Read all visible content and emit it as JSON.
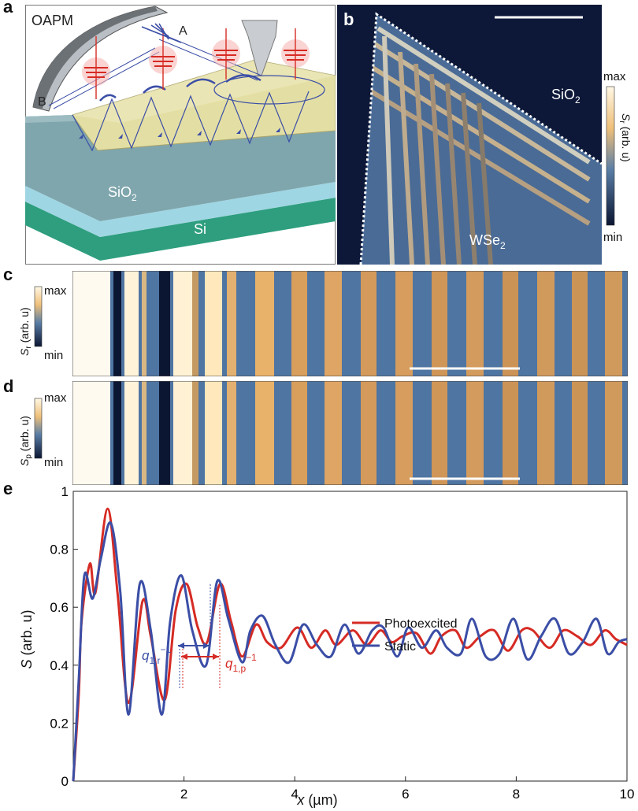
{
  "panels": {
    "a": {
      "label": "a",
      "oapm": "OAPM",
      "label_A": "A",
      "label_B": "B",
      "sio2_main": "SiO",
      "sio2_sub": "2",
      "si": "Si"
    },
    "b": {
      "label": "b",
      "sio2_main": "SiO",
      "sio2_sub": "2",
      "wse2_main": "WSe",
      "wse2_sub": "2",
      "colorbar_max": "max",
      "colorbar_min": "min",
      "colorbar_label_main": "S",
      "colorbar_label_sub": "r",
      "colorbar_label_rest": " (arb. u)"
    },
    "c": {
      "label": "c",
      "colorbar_max": "max",
      "colorbar_min": "min",
      "colorbar_label_main": "S",
      "colorbar_label_sub": "r",
      "colorbar_label_rest": " (arb. u)"
    },
    "d": {
      "label": "d",
      "colorbar_max": "max",
      "colorbar_min": "min",
      "colorbar_label_main": "S",
      "colorbar_label_sub": "p",
      "colorbar_label_rest": " (arb. u)"
    },
    "e": {
      "label": "e"
    }
  },
  "colors": {
    "photoexcited": "#d62b24",
    "static": "#3b4ea6",
    "map_low": "#0b1633",
    "map_high": "#fff6dc"
  },
  "chart_data": {
    "type": "line",
    "xlabel_var": "x",
    "xlabel_unit": " (µm)",
    "ylabel_var": "S",
    "ylabel_unit": " (arb. u)",
    "xlim": [
      0,
      10
    ],
    "ylim": [
      0,
      1
    ],
    "xticks": [
      2,
      4,
      6,
      8,
      10
    ],
    "yticks": [
      0,
      0.2,
      0.4,
      0.6,
      0.8,
      1
    ],
    "ytick_labels": [
      "0",
      "0.2",
      "0.4",
      "0.6",
      "0.8",
      "1"
    ],
    "legend_position": "lower-right",
    "series": [
      {
        "name": "Photoexcited",
        "color": "#d62b24",
        "x": [
          0,
          0.1,
          0.15,
          0.3,
          0.4,
          0.62,
          0.8,
          1.0,
          1.25,
          1.4,
          1.65,
          1.85,
          2.05,
          2.25,
          2.42,
          2.65,
          2.85,
          3.05,
          3.3,
          3.5,
          3.75,
          4.05,
          4.3,
          4.55,
          4.75,
          5.05,
          5.3,
          5.55,
          5.75,
          5.95,
          6.2,
          6.45,
          6.65,
          6.9,
          7.1,
          7.35,
          7.6,
          7.85,
          8.1,
          8.3,
          8.6,
          8.85,
          9.1,
          9.35,
          9.6,
          9.8,
          10.0
        ],
        "y": [
          0,
          0.3,
          0.55,
          0.75,
          0.65,
          0.94,
          0.65,
          0.27,
          0.62,
          0.5,
          0.28,
          0.59,
          0.68,
          0.53,
          0.48,
          0.68,
          0.55,
          0.43,
          0.54,
          0.48,
          0.46,
          0.53,
          0.46,
          0.52,
          0.47,
          0.52,
          0.47,
          0.52,
          0.48,
          0.5,
          0.51,
          0.44,
          0.5,
          0.52,
          0.46,
          0.5,
          0.52,
          0.45,
          0.52,
          0.52,
          0.46,
          0.52,
          0.5,
          0.47,
          0.52,
          0.49,
          0.47
        ]
      },
      {
        "name": "Static",
        "color": "#3b4ea6",
        "x": [
          0,
          0.1,
          0.2,
          0.35,
          0.5,
          0.68,
          0.85,
          1.0,
          1.2,
          1.4,
          1.6,
          1.75,
          1.95,
          2.15,
          2.4,
          2.6,
          2.8,
          3.05,
          3.2,
          3.42,
          3.65,
          3.9,
          4.15,
          4.4,
          4.65,
          4.9,
          5.15,
          5.4,
          5.6,
          5.85,
          6.05,
          6.3,
          6.55,
          6.75,
          7.0,
          7.2,
          7.45,
          7.7,
          7.95,
          8.2,
          8.45,
          8.7,
          8.95,
          9.2,
          9.45,
          9.65,
          9.85,
          10.0
        ],
        "y": [
          0,
          0.35,
          0.71,
          0.63,
          0.77,
          0.89,
          0.65,
          0.23,
          0.68,
          0.52,
          0.23,
          0.55,
          0.71,
          0.52,
          0.4,
          0.69,
          0.56,
          0.41,
          0.52,
          0.57,
          0.47,
          0.41,
          0.54,
          0.47,
          0.43,
          0.54,
          0.44,
          0.52,
          0.53,
          0.43,
          0.53,
          0.46,
          0.52,
          0.46,
          0.44,
          0.56,
          0.43,
          0.44,
          0.56,
          0.42,
          0.5,
          0.56,
          0.44,
          0.48,
          0.56,
          0.44,
          0.48,
          0.49
        ]
      }
    ],
    "annotations": {
      "q_r_main": "q",
      "q_r_sub": "1,r",
      "q_r_sup": "−1",
      "q_p_main": "q",
      "q_p_sub": "1,p",
      "q_p_sup": "−1"
    }
  }
}
